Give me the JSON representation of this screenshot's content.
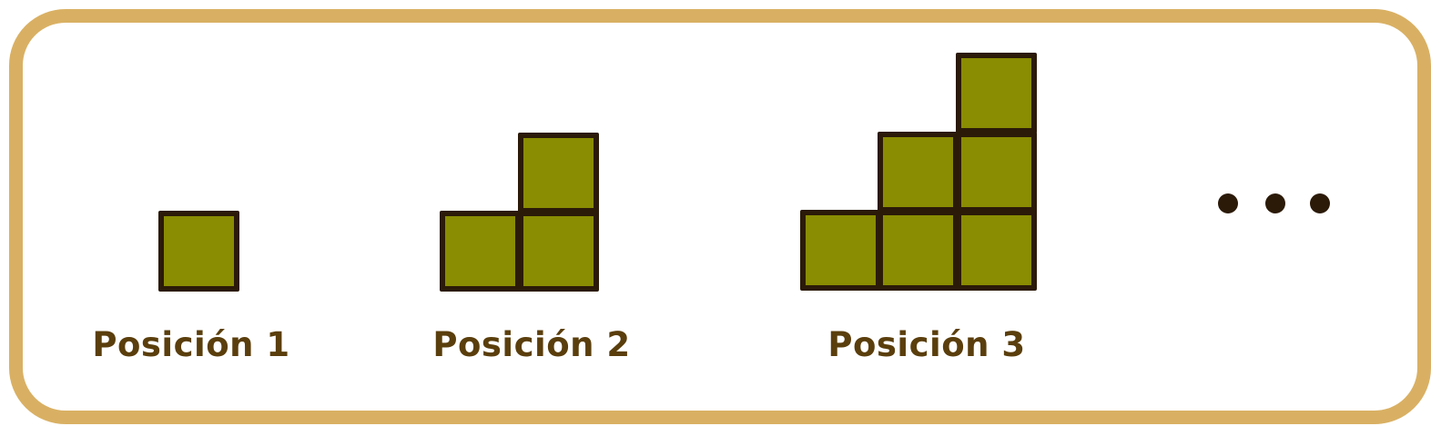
{
  "positions": [
    {
      "label": "Posición 1",
      "squares": 1
    },
    {
      "label": "Posición 2",
      "squares": 3
    },
    {
      "label": "Posición 3",
      "squares": 6
    }
  ],
  "continuation": "• • •",
  "colors": {
    "frame": "#d9b063",
    "square_fill": "#8a8c02",
    "square_border": "#2b1a08",
    "label": "#5a3e0c"
  }
}
